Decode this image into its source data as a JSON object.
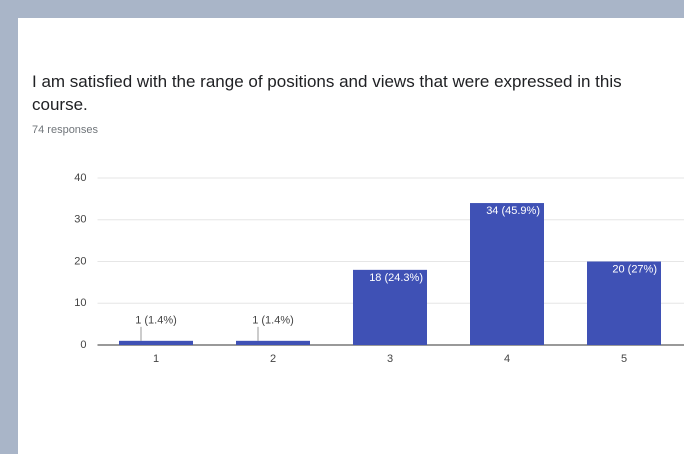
{
  "chart_data": {
    "type": "bar",
    "title": "I am satisfied with the range of positions and views that were expressed in this course.",
    "subtitle": "74 responses",
    "categories": [
      "1",
      "2",
      "3",
      "4",
      "5"
    ],
    "values": [
      1,
      1,
      18,
      34,
      20
    ],
    "value_labels": [
      "1 (1.4%)",
      "1 (1.4%)",
      "18 (24.3%)",
      "34 (45.9%)",
      "20 (27%)"
    ],
    "color": "#3f51b5",
    "ylim": [
      0,
      40
    ],
    "yticks": [
      0,
      10,
      20,
      30,
      40
    ],
    "grid": true
  }
}
